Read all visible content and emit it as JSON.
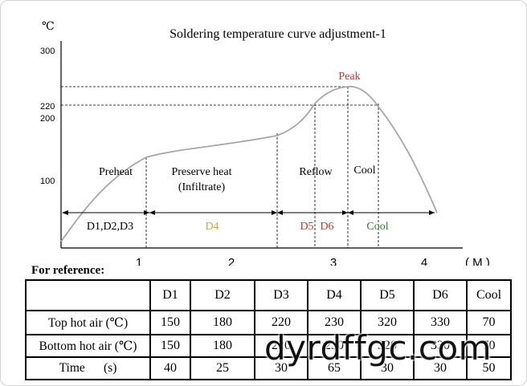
{
  "title": "Soldering temperature curve adjustment-1",
  "y_unit": "℃",
  "x_unit": "( M )",
  "y_ticks": [
    "300",
    "220",
    "200",
    "100"
  ],
  "x_ticks": [
    "1",
    "2",
    "3",
    "4"
  ],
  "peak_label": "Peak",
  "zones": [
    {
      "label": "Preheat",
      "color": "#000000"
    },
    {
      "label": "Preserve heat",
      "color": "#000000"
    },
    {
      "label": "(Infiltrate)",
      "color": "#000000"
    },
    {
      "label": "Reflow",
      "color": "#000000"
    },
    {
      "label": "Cool",
      "color": "#000000"
    }
  ],
  "stage_labels": [
    {
      "label": "D1,D2,D3",
      "color": "#000000"
    },
    {
      "label": "D4",
      "color": "#e8a020"
    },
    {
      "label": "D5",
      "color": "#c0392b"
    },
    {
      "label": "D6",
      "color": "#c0392b"
    },
    {
      "label": "Cool",
      "color": "#2e7d32"
    }
  ],
  "colors": {
    "curve": "#a6a6a6",
    "peak": "#c0392b",
    "d4": "#e8a020",
    "d5_d6": "#c0392b",
    "cool": "#2e7d32",
    "frame_border": "#d4d4d4"
  },
  "chart_data": {
    "type": "line",
    "title": "Soldering temperature curve adjustment-1",
    "ylabel": "℃",
    "xlabel": "( M )",
    "y_ticks": [
      100,
      200,
      220,
      300
    ],
    "x_ticks": [
      1,
      2,
      3,
      4
    ],
    "x": [
      0.0,
      0.5,
      1.0,
      1.5,
      2.0,
      2.5,
      2.8,
      3.0,
      3.15,
      3.3,
      3.5,
      3.8,
      4.15
    ],
    "y": [
      10,
      80,
      130,
      150,
      157,
      170,
      200,
      225,
      231,
      226,
      210,
      150,
      80
    ],
    "peak": {
      "x": 3.15,
      "y": 231,
      "label": "Peak"
    },
    "ylim": [
      0,
      320
    ],
    "xlim": [
      -0.05,
      4.6
    ]
  },
  "reference_label": "For reference:",
  "table": {
    "headers": [
      "",
      "D1",
      "D2",
      "D3",
      "D4",
      "D5",
      "D6",
      "Cool"
    ],
    "rows": [
      {
        "label": "Top hot air (℃)",
        "values": [
          "150",
          "180",
          "220",
          "230",
          "320",
          "330",
          "70"
        ]
      },
      {
        "label": "Bottom hot air (℃)",
        "values": [
          "150",
          "180",
          "220",
          "230",
          "320",
          "330",
          "70"
        ]
      },
      {
        "label": "Time      (s)",
        "values": [
          "40",
          "25",
          "30",
          "65",
          "30",
          "30",
          "50"
        ]
      }
    ]
  },
  "watermark": "dyrdffgc.com"
}
